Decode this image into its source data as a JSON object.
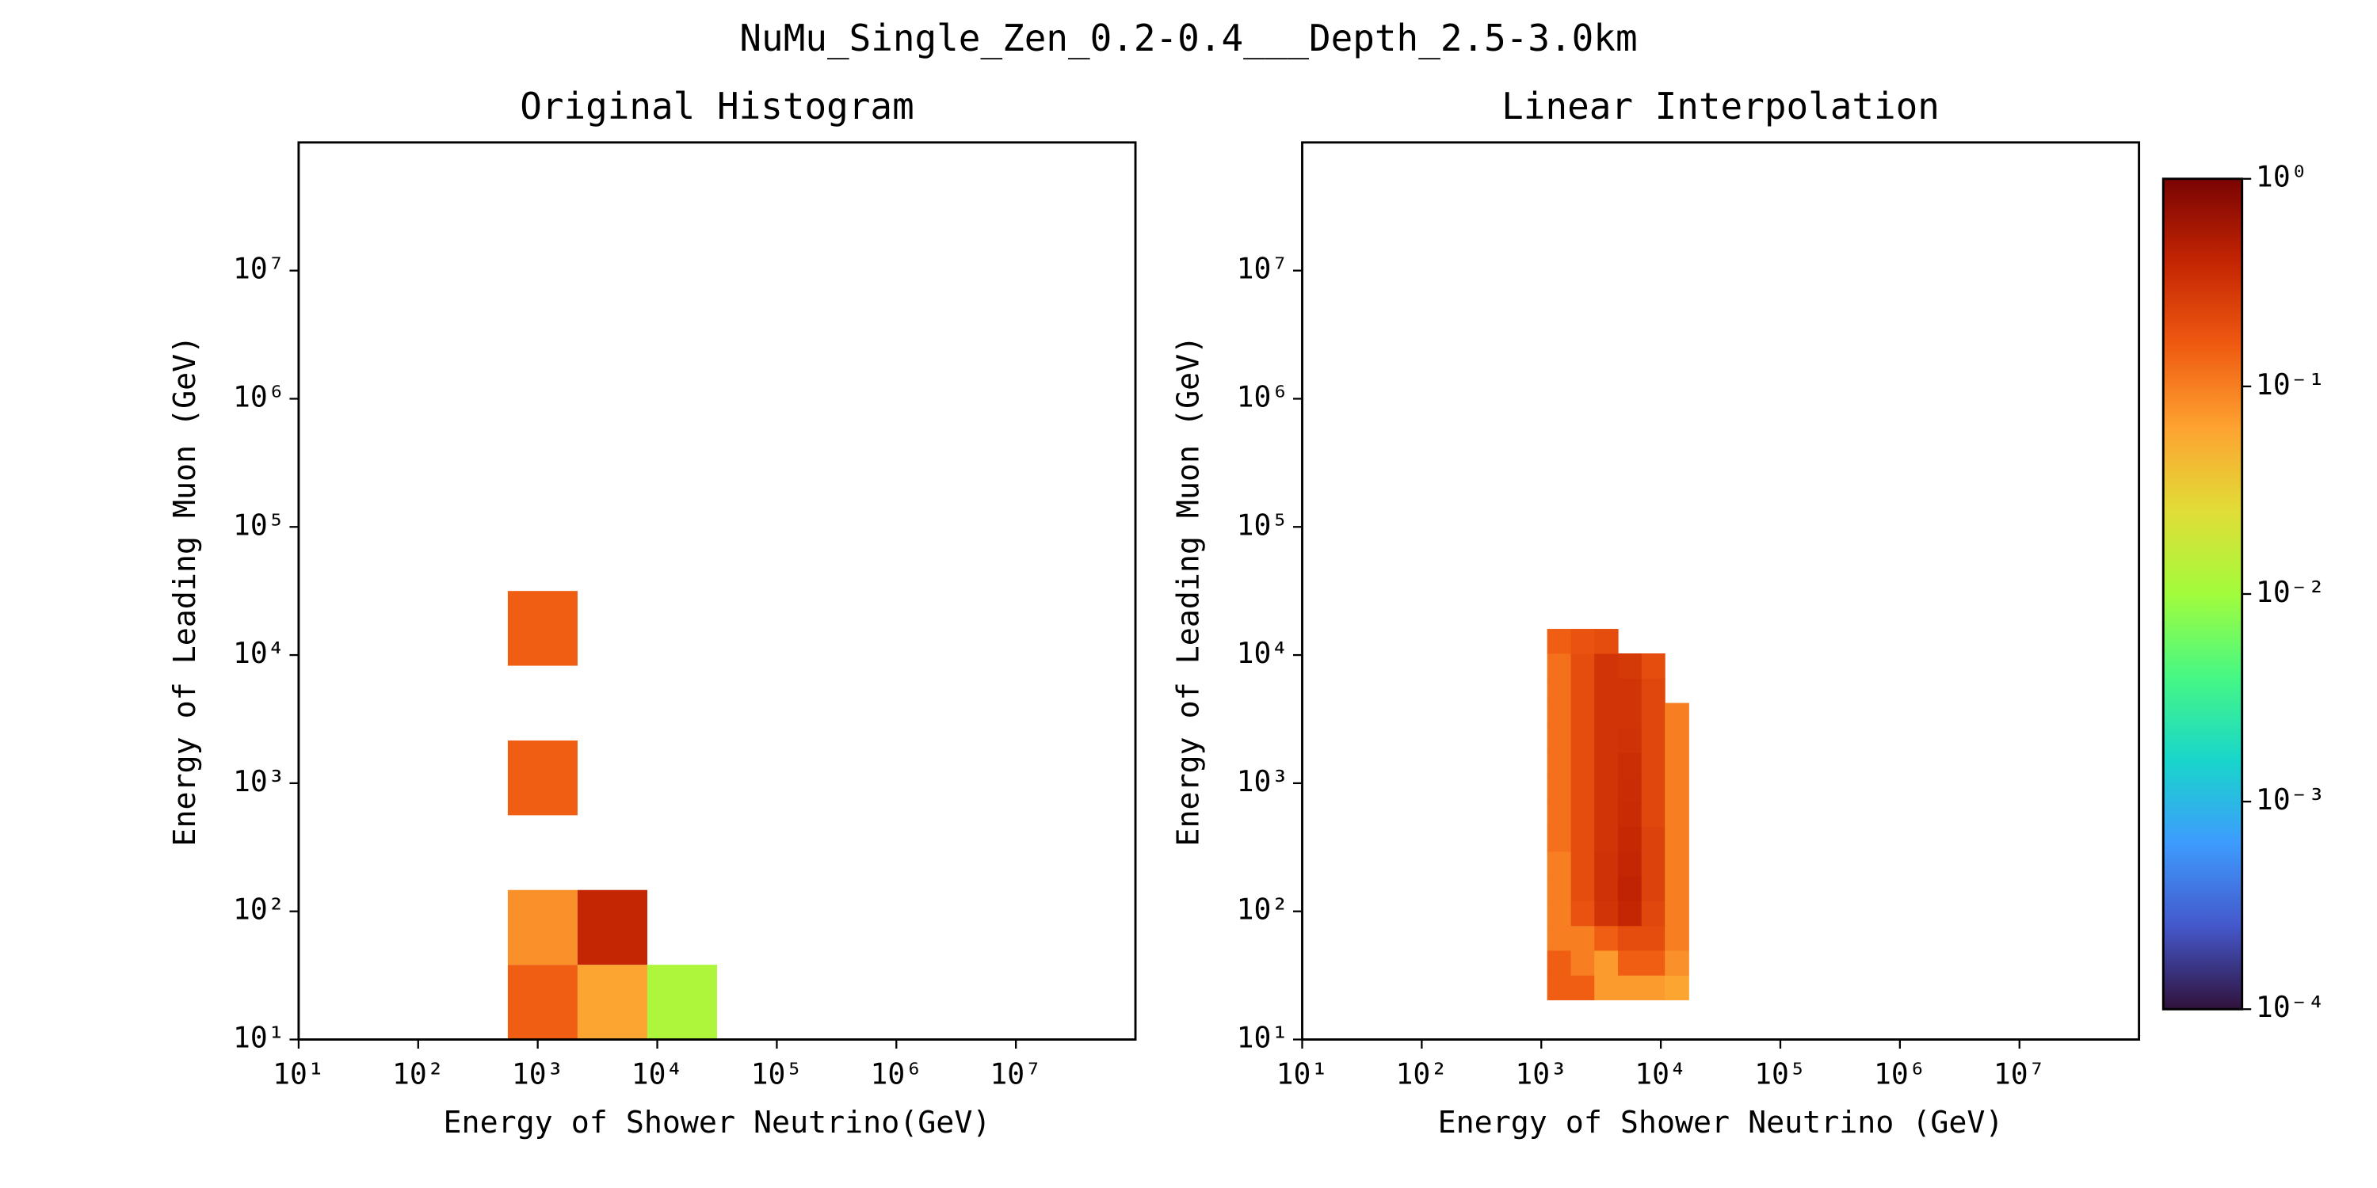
{
  "title": "NuMu_Single_Zen_0.2-0.4___Depth_2.5-3.0km",
  "colorbar": {
    "log": true,
    "lim": [
      0.0001,
      1
    ],
    "ticks": [
      {
        "value": 1,
        "label": "10⁰"
      },
      {
        "value": 0.1,
        "label": "10⁻¹"
      },
      {
        "value": 0.01,
        "label": "10⁻²"
      },
      {
        "value": 0.001,
        "label": "10⁻³"
      },
      {
        "value": 0.0001,
        "label": "10⁻⁴"
      }
    ],
    "colormap": [
      "#30123b",
      "#4458cb",
      "#3e9bfe",
      "#18d6cb",
      "#46f884",
      "#a2fc3c",
      "#e1dd37",
      "#fea331",
      "#ef5a11",
      "#c42503",
      "#7a0403"
    ]
  },
  "chart_data": [
    {
      "type": "histogram2d",
      "title": "Original Histogram",
      "x_label": "Energy of Shower Neutrino(GeV)",
      "y_label": "Energy of Leading Muon (GeV)",
      "log_x": true,
      "log_y": true,
      "xlim": [
        10,
        100000000
      ],
      "ylim": [
        10,
        100000000
      ],
      "xticks": [
        {
          "value": 10,
          "label": "10¹"
        },
        {
          "value": 100,
          "label": "10²"
        },
        {
          "value": 1000,
          "label": "10³"
        },
        {
          "value": 10000,
          "label": "10⁴"
        },
        {
          "value": 100000,
          "label": "10⁵"
        },
        {
          "value": 1000000,
          "label": "10⁶"
        },
        {
          "value": 10000000,
          "label": "10⁷"
        }
      ],
      "yticks": [
        {
          "value": 10,
          "label": "10¹"
        },
        {
          "value": 100,
          "label": "10²"
        },
        {
          "value": 1000,
          "label": "10³"
        },
        {
          "value": 10000,
          "label": "10⁴"
        },
        {
          "value": 100000,
          "label": "10⁵"
        },
        {
          "value": 1000000,
          "label": "10⁶"
        },
        {
          "value": 10000000,
          "label": "10⁷"
        }
      ],
      "cells": [
        {
          "x": [
            562,
            2154
          ],
          "y": [
            10,
            38.3
          ],
          "value": 0.15
        },
        {
          "x": [
            2154,
            8254
          ],
          "y": [
            10,
            38.3
          ],
          "value": 0.06
        },
        {
          "x": [
            8254,
            31623
          ],
          "y": [
            10,
            38.3
          ],
          "value": 0.012
        },
        {
          "x": [
            562,
            2154
          ],
          "y": [
            38.3,
            146.8
          ],
          "value": 0.08
        },
        {
          "x": [
            2154,
            8254
          ],
          "y": [
            38.3,
            146.8
          ],
          "value": 0.4
        },
        {
          "x": [
            562,
            2154
          ],
          "y": [
            562,
            2154
          ],
          "value": 0.15
        },
        {
          "x": [
            562,
            2154
          ],
          "y": [
            8254,
            31623
          ],
          "value": 0.15
        }
      ]
    },
    {
      "type": "heatmap",
      "title": "Linear Interpolation",
      "x_label": "Energy of Shower Neutrino (GeV)",
      "y_label": "Energy of Leading Muon (GeV)",
      "log_x": true,
      "log_y": true,
      "xlim": [
        10,
        100000000
      ],
      "ylim": [
        10,
        100000000
      ],
      "xticks": [
        {
          "value": 10,
          "label": "10¹"
        },
        {
          "value": 100,
          "label": "10²"
        },
        {
          "value": 1000,
          "label": "10³"
        },
        {
          "value": 10000,
          "label": "10⁴"
        },
        {
          "value": 100000,
          "label": "10⁵"
        },
        {
          "value": 1000000,
          "label": "10⁶"
        },
        {
          "value": 10000000,
          "label": "10⁷"
        }
      ],
      "yticks": [
        {
          "value": 10,
          "label": "10¹"
        },
        {
          "value": 100,
          "label": "10²"
        },
        {
          "value": 1000,
          "label": "10³"
        },
        {
          "value": 10000,
          "label": "10⁴"
        },
        {
          "value": 100000,
          "label": "10⁵"
        },
        {
          "value": 1000000,
          "label": "10⁶"
        },
        {
          "value": 10000000,
          "label": "10⁷"
        }
      ],
      "x_edges": [
        1120,
        1770,
        2780,
        4380,
        6890,
        10800,
        17100
      ],
      "y_edges": [
        20.4,
        31.8,
        49.7,
        77.4,
        121,
        188,
        294,
        458,
        715,
        1110,
        1740,
        2710,
        4230,
        6590,
        10300,
        16000
      ],
      "z": [
        [
          0.15,
          0.15,
          0.07,
          0.07,
          0.07,
          0.06
        ],
        [
          0.15,
          0.1,
          0.07,
          0.15,
          0.15,
          0.08
        ],
        [
          0.1,
          0.1,
          0.15,
          0.2,
          0.2,
          0.1
        ],
        [
          0.1,
          0.18,
          0.3,
          0.4,
          0.22,
          0.1
        ],
        [
          0.1,
          0.2,
          0.32,
          0.42,
          0.24,
          0.1
        ],
        [
          0.1,
          0.2,
          0.32,
          0.4,
          0.24,
          0.1
        ],
        [
          0.12,
          0.2,
          0.3,
          0.38,
          0.24,
          0.1
        ],
        [
          0.12,
          0.2,
          0.3,
          0.36,
          0.22,
          0.1
        ],
        [
          0.12,
          0.2,
          0.3,
          0.35,
          0.22,
          0.1
        ],
        [
          0.12,
          0.2,
          0.3,
          0.34,
          0.22,
          0.1
        ],
        [
          0.12,
          0.2,
          0.3,
          0.32,
          0.22,
          0.1
        ],
        [
          0.12,
          0.2,
          0.3,
          0.3,
          0.22,
          0.1
        ],
        [
          0.12,
          0.2,
          0.3,
          0.3,
          0.22,
          null
        ],
        [
          0.12,
          0.2,
          0.3,
          0.28,
          0.2,
          null
        ],
        [
          0.15,
          0.18,
          0.2,
          null,
          null,
          null
        ]
      ]
    }
  ]
}
